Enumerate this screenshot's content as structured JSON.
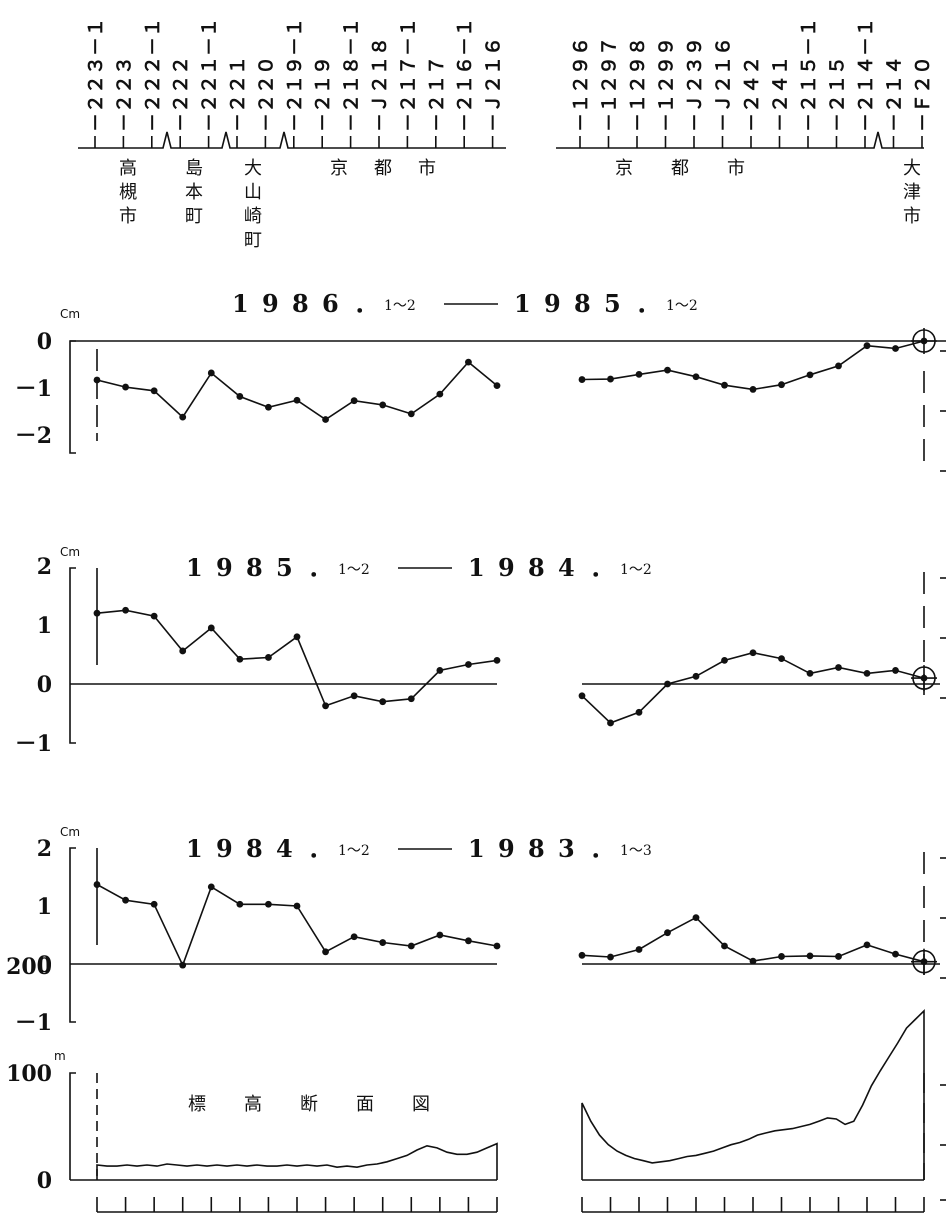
{
  "header": {
    "left_benchmarks": [
      "－２２３－１",
      "－２２３",
      "－２２２－１",
      "－２２２",
      "－２２１－１",
      "－２２１",
      "－２２０",
      "－２１９－１",
      "－２１９",
      "－２１８－１",
      "－Ｊ２１８",
      "－２１７－１",
      "－２１７",
      "－２１６－１",
      "－Ｊ２１６"
    ],
    "right_benchmarks": [
      "－１２９６",
      "－１２９７",
      "－１２９８",
      "－１２９９",
      "－Ｊ２３９",
      "－Ｊ２１６",
      "－２４２",
      "－２４１",
      "－２１５－１",
      "－２１５",
      "－２１４－１",
      "－２１４",
      "－Ｆ２０"
    ],
    "places": [
      {
        "name": "高槻市"
      },
      {
        "name": "島本町"
      },
      {
        "name": "大山崎町"
      },
      {
        "name": "京都市"
      },
      {
        "name": "京都市"
      },
      {
        "name": "大津市"
      }
    ]
  },
  "chart_data": [
    {
      "type": "line",
      "title_years": [
        "1986",
        "1985"
      ],
      "title_months": [
        "1～2",
        "1～2"
      ],
      "unit": "Cm",
      "yticks": [
        "0",
        "－1",
        "－2"
      ],
      "ylim": [
        0,
        -2
      ],
      "reference_line": 0,
      "series": [
        {
          "values": [
            -0.83,
            -0.98,
            -1.06,
            -1.62,
            -0.68,
            -1.18,
            -1.41,
            -1.26,
            -1.67,
            -1.27,
            -1.36,
            -1.55,
            -1.13,
            -0.45,
            -0.95
          ]
        },
        {
          "values": [
            -0.82,
            -0.81,
            -0.71,
            -0.62,
            -0.76,
            -0.94,
            -1.03,
            -0.93,
            -0.72,
            -0.53,
            -0.1,
            -0.16,
            0.0
          ]
        }
      ]
    },
    {
      "type": "line",
      "title_years": [
        "1985",
        "1984"
      ],
      "title_months": [
        "1～2",
        "1～2"
      ],
      "unit": "Cm",
      "yticks": [
        "2",
        "1",
        "0",
        "－1"
      ],
      "ylim": [
        2,
        -1
      ],
      "reference_line": 0,
      "series": [
        {
          "values": [
            1.2,
            1.25,
            1.15,
            0.56,
            0.95,
            0.42,
            0.45,
            0.8,
            -0.37,
            -0.2,
            -0.3,
            -0.25,
            0.23,
            0.33,
            0.4
          ]
        },
        {
          "values": [
            -0.2,
            -0.66,
            -0.48,
            0.0,
            0.13,
            0.4,
            0.53,
            0.43,
            0.18,
            0.28,
            0.18,
            0.23,
            0.1
          ]
        }
      ]
    },
    {
      "type": "line",
      "title_years": [
        "1984",
        "1983"
      ],
      "title_months": [
        "1～2",
        "1～3"
      ],
      "unit": "Cm",
      "yticks": [
        "2",
        "1",
        "0",
        "－1"
      ],
      "ylim": [
        2,
        -1
      ],
      "reference_line": 0,
      "series": [
        {
          "values": [
            1.37,
            1.1,
            1.03,
            -0.02,
            1.33,
            1.03,
            1.03,
            1.0,
            0.21,
            0.47,
            0.37,
            0.31,
            0.5,
            0.4,
            0.31
          ]
        },
        {
          "values": [
            0.15,
            0.12,
            0.25,
            0.54,
            0.8,
            0.31,
            0.05,
            0.13,
            0.14,
            0.13,
            0.33,
            0.17,
            0.04
          ]
        }
      ]
    },
    {
      "type": "area",
      "title": "標高断面図",
      "unit": "m",
      "yticks": [
        "200",
        "100",
        "0"
      ],
      "ylim": [
        0,
        200
      ],
      "series": [
        {
          "values": [
            14,
            13,
            13,
            14,
            13,
            14,
            13,
            15,
            14,
            13,
            14,
            13,
            14,
            13,
            14,
            13,
            14,
            13,
            13,
            14,
            13,
            14,
            13,
            14,
            12,
            13,
            12,
            14,
            15,
            17,
            20,
            23,
            28,
            32,
            30,
            26,
            24,
            24,
            26,
            30,
            34
          ]
        },
        {
          "values": [
            72,
            55,
            42,
            33,
            27,
            23,
            20,
            18,
            16,
            17,
            18,
            20,
            22,
            23,
            25,
            27,
            30,
            33,
            35,
            38,
            42,
            44,
            46,
            47,
            48,
            50,
            52,
            55,
            58,
            57,
            52,
            55,
            70,
            88,
            102,
            115,
            128,
            142,
            150,
            158
          ]
        }
      ]
    }
  ]
}
